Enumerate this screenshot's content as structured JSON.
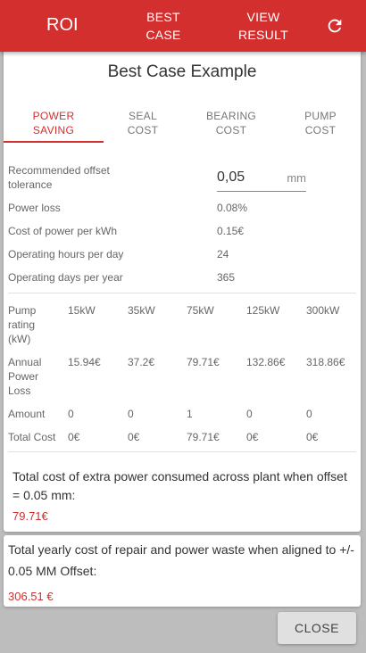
{
  "topbar": {
    "title": "ROI",
    "best_case_line1": "BEST",
    "best_case_line2": "CASE",
    "view_result_line1": "VIEW",
    "view_result_line2": "RESULT",
    "refresh_icon": "refresh-icon",
    "color": "#d32f2f"
  },
  "card": {
    "title": "Best Case Example",
    "tabs": [
      {
        "line1": "POWER",
        "line2": "SAVING",
        "active": true
      },
      {
        "line1": "SEAL",
        "line2": "COST",
        "active": false
      },
      {
        "line1": "BEARING",
        "line2": "COST",
        "active": false
      },
      {
        "line1": "PUMP",
        "line2": "COST",
        "active": false
      }
    ],
    "offset": {
      "label_line1": "Recommended offset",
      "label_line2": "tolerance",
      "value": "0,05",
      "unit": "mm"
    },
    "params": [
      {
        "label": "Power loss",
        "value": "0.08%"
      },
      {
        "label": "Cost of power per kWh",
        "value": "0.15€"
      },
      {
        "label": "Operating hours per day",
        "value": "24"
      },
      {
        "label": "Operating days per year",
        "value": "365"
      }
    ],
    "table": {
      "rating_label": [
        "Pump",
        "rating",
        "(kW)"
      ],
      "loss_label": [
        "Annual",
        "Power",
        "Loss"
      ],
      "amount_label": "Amount",
      "total_label": "Total Cost",
      "ratings": [
        "15kW",
        "35kW",
        "75kW",
        "125kW",
        "300kW"
      ],
      "losses": [
        "15.94€",
        "37.2€",
        "79.71€",
        "132.86€",
        "318.86€"
      ],
      "amounts": [
        "0",
        "0",
        "1",
        "0",
        "0"
      ],
      "totals": [
        "0€",
        "0€",
        "79.71€",
        "0€",
        "0€"
      ]
    },
    "summary_text": "Total cost of extra power consumed across plant when offset = 0.05 mm:",
    "summary_value": "79.71€"
  },
  "card2": {
    "text": "Total yearly cost of repair and power waste when aligned to +/- 0.05 MM Offset:",
    "value": "306.51 €"
  },
  "close_label": "CLOSE",
  "accent_color": "#d32f2f"
}
